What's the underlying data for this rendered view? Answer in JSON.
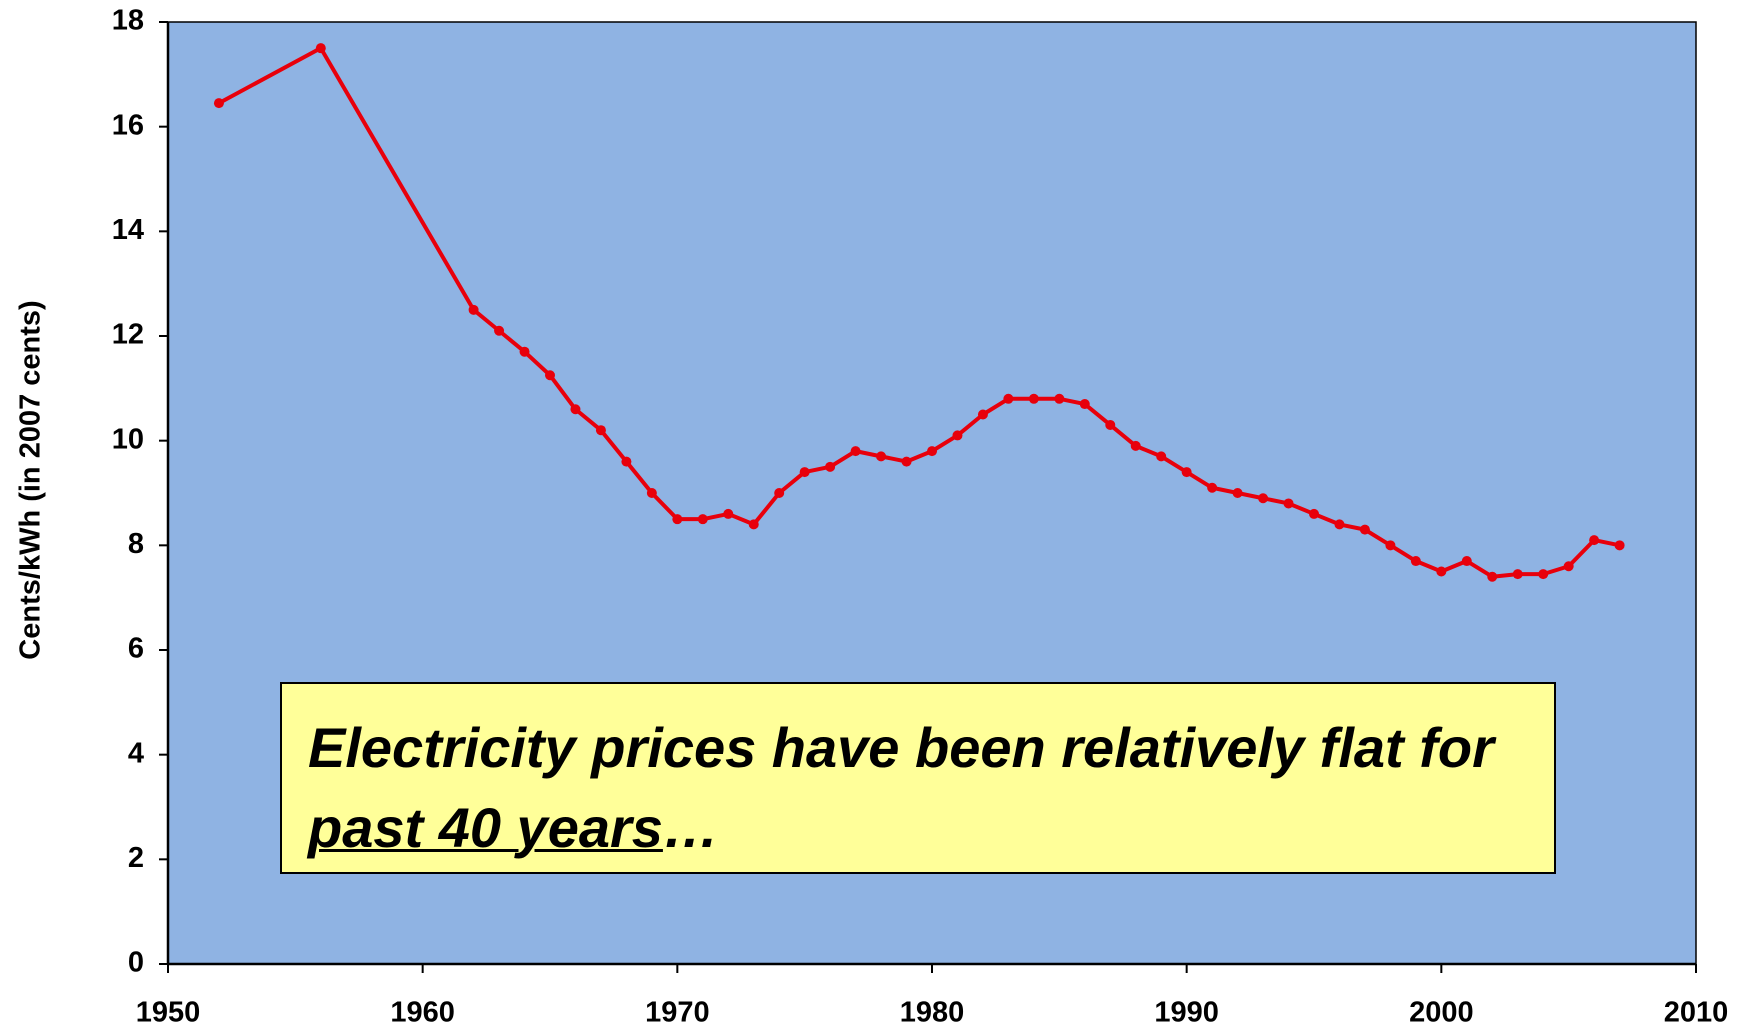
{
  "chart_data": {
    "type": "line",
    "y_label": "Cents/kWh (in 2007 cents)",
    "annotation": {
      "text": "Electricity prices have been relatively flat for ",
      "underlined": "past 40 years",
      "suffix": "…"
    },
    "x": [
      1952,
      1956,
      1962,
      1963,
      1964,
      1965,
      1966,
      1967,
      1968,
      1969,
      1970,
      1971,
      1972,
      1973,
      1974,
      1975,
      1976,
      1977,
      1978,
      1979,
      1980,
      1981,
      1982,
      1983,
      1984,
      1985,
      1986,
      1987,
      1988,
      1989,
      1990,
      1991,
      1992,
      1993,
      1994,
      1995,
      1996,
      1997,
      1998,
      1999,
      2000,
      2001,
      2002,
      2003,
      2004,
      2005,
      2006,
      2007
    ],
    "series": [
      {
        "name": "Electricity price",
        "color": "#e8000b",
        "values": [
          16.45,
          17.5,
          12.5,
          12.1,
          11.7,
          11.25,
          10.6,
          10.2,
          9.6,
          9.0,
          8.5,
          8.5,
          8.6,
          8.4,
          9.0,
          9.4,
          9.5,
          9.8,
          9.7,
          9.6,
          9.8,
          10.1,
          10.5,
          10.8,
          10.8,
          10.8,
          10.7,
          10.3,
          9.9,
          9.7,
          9.4,
          9.1,
          9.0,
          8.9,
          8.8,
          8.6,
          8.4,
          8.3,
          8.0,
          7.7,
          7.5,
          7.7,
          7.4,
          7.45,
          7.45,
          7.6,
          8.1,
          8.0
        ]
      }
    ],
    "xlim": [
      1950,
      2010
    ],
    "xticks": [
      1950,
      1960,
      1970,
      1980,
      1990,
      2000,
      2010
    ],
    "ylim": [
      0,
      18
    ],
    "yticks": [
      0,
      2,
      4,
      6,
      8,
      10,
      12,
      14,
      16,
      18
    ],
    "plot_background": "#8fb3e3"
  }
}
